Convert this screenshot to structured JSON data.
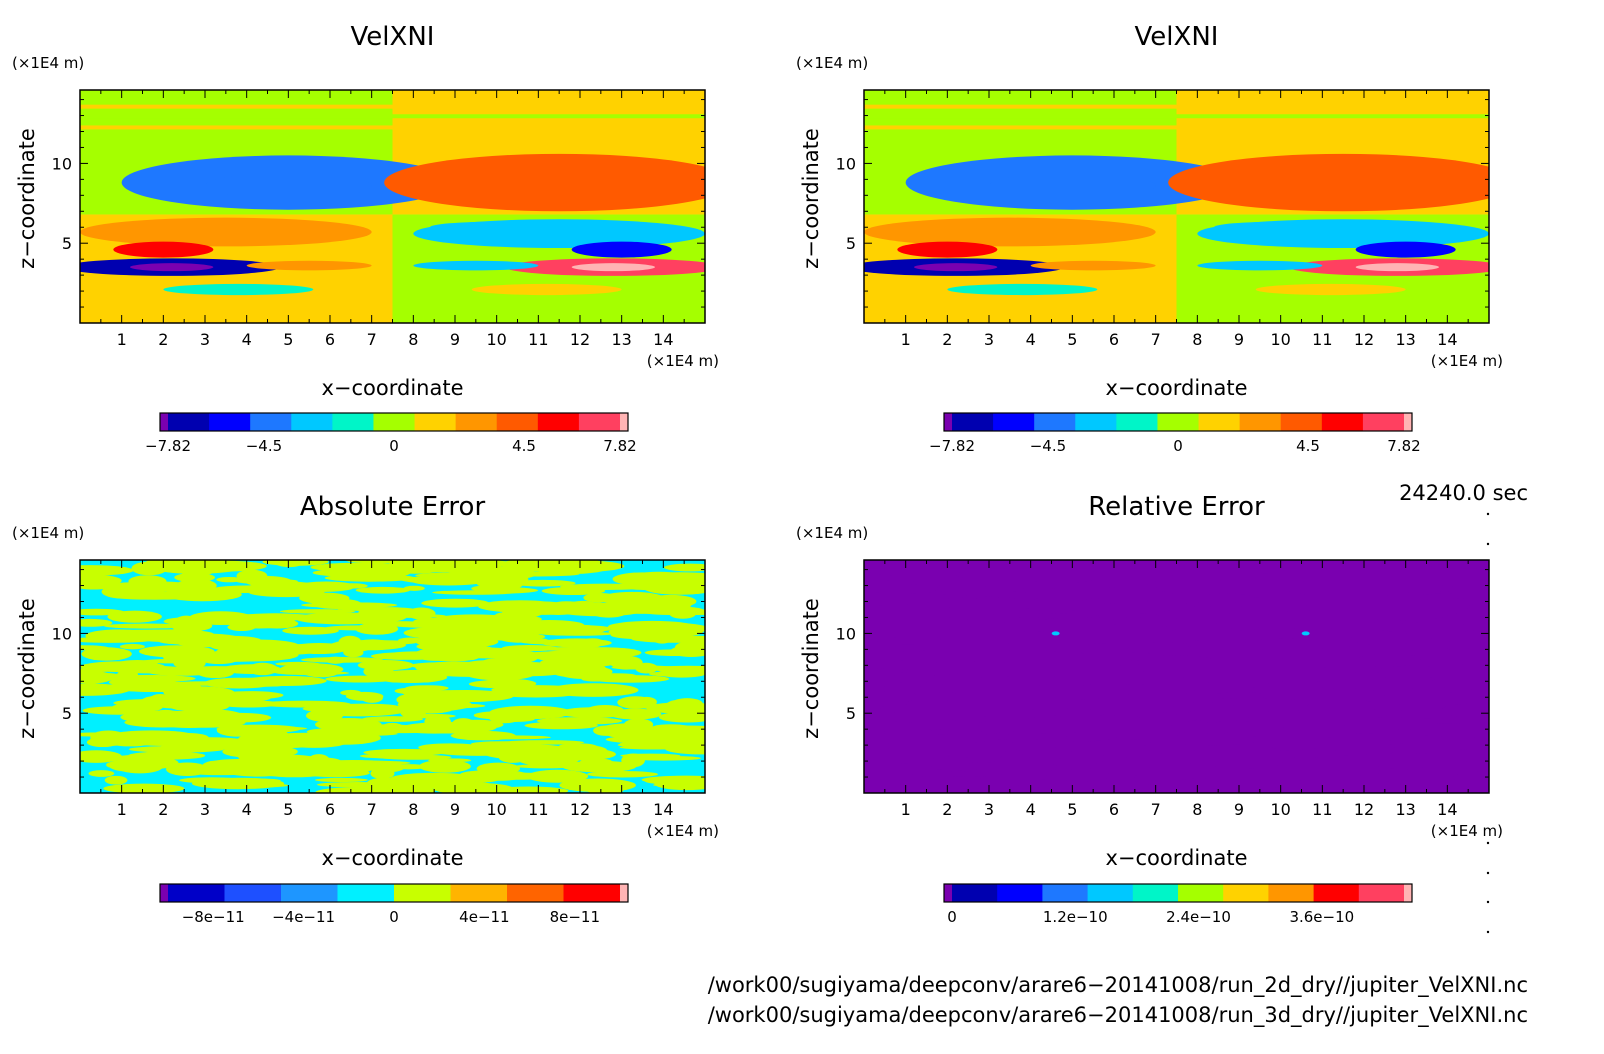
{
  "chart_data": [
    {
      "type": "heatmap",
      "title": "VelXNI",
      "xlabel": "x−coordinate",
      "ylabel": "z−coordinate",
      "x_unit": "(×1E4 m)",
      "y_unit": "(×1E4 m)",
      "x_ticks": [
        "1",
        "2",
        "3",
        "4",
        "5",
        "6",
        "7",
        "8",
        "9",
        "10",
        "11",
        "12",
        "13",
        "14"
      ],
      "y_ticks": [
        "5",
        "10"
      ],
      "xlim": [
        0,
        15
      ],
      "ylim": [
        0,
        14.6
      ],
      "colorbar": {
        "labels": [
          "−7.82",
          "−4.5",
          "0",
          "4.5",
          "7.82"
        ],
        "label_positions": [
          -7.82,
          -4.5,
          0,
          4.5,
          7.82
        ],
        "range": [
          -7.82,
          7.82
        ],
        "colors": [
          "#7a00b0",
          "#0000b0",
          "#0000ff",
          "#1e78ff",
          "#00c8ff",
          "#00f5c8",
          "#a5ff00",
          "#ffd200",
          "#ff9600",
          "#ff5a00",
          "#ff0000",
          "#ff4060",
          "#ffb4b4"
        ]
      },
      "features": [
        {
          "x": 5.0,
          "z": 9.0,
          "value": -3.5
        },
        {
          "x": 2.0,
          "z": 5.5,
          "value": 3.5
        },
        {
          "x": 2.0,
          "z": 3.5,
          "value": -7.5
        },
        {
          "x": 4.5,
          "z": 6.2,
          "value": 2.0
        },
        {
          "x": 11.5,
          "z": 9.0,
          "value": 3.5
        },
        {
          "x": 13.0,
          "z": 5.5,
          "value": -3.5
        },
        {
          "x": 13.0,
          "z": 3.5,
          "value": 7.5
        },
        {
          "x": 10.5,
          "z": 6.2,
          "value": -2.0
        }
      ]
    },
    {
      "type": "heatmap",
      "title": "VelXNI",
      "xlabel": "x−coordinate",
      "ylabel": "z−coordinate",
      "x_unit": "(×1E4 m)",
      "y_unit": "(×1E4 m)",
      "x_ticks": [
        "1",
        "2",
        "3",
        "4",
        "5",
        "6",
        "7",
        "8",
        "9",
        "10",
        "11",
        "12",
        "13",
        "14"
      ],
      "y_ticks": [
        "5",
        "10"
      ],
      "xlim": [
        0,
        15
      ],
      "ylim": [
        0,
        14.6
      ],
      "colorbar": {
        "labels": [
          "−7.82",
          "−4.5",
          "0",
          "4.5",
          "7.82"
        ],
        "label_positions": [
          -7.82,
          -4.5,
          0,
          4.5,
          7.82
        ],
        "range": [
          -7.82,
          7.82
        ],
        "colors": [
          "#7a00b0",
          "#0000b0",
          "#0000ff",
          "#1e78ff",
          "#00c8ff",
          "#00f5c8",
          "#a5ff00",
          "#ffd200",
          "#ff9600",
          "#ff5a00",
          "#ff0000",
          "#ff4060",
          "#ffb4b4"
        ]
      },
      "features": [
        {
          "x": 5.0,
          "z": 9.0,
          "value": -3.5
        },
        {
          "x": 2.0,
          "z": 5.5,
          "value": 3.5
        },
        {
          "x": 2.0,
          "z": 3.5,
          "value": -7.5
        },
        {
          "x": 4.5,
          "z": 6.2,
          "value": 2.0
        },
        {
          "x": 11.5,
          "z": 9.0,
          "value": 3.5
        },
        {
          "x": 13.0,
          "z": 5.5,
          "value": -3.5
        },
        {
          "x": 13.0,
          "z": 3.5,
          "value": 7.5
        },
        {
          "x": 10.5,
          "z": 6.2,
          "value": -2.0
        }
      ]
    },
    {
      "type": "heatmap",
      "title": "Absolute Error",
      "xlabel": "x−coordinate",
      "ylabel": "z−coordinate",
      "x_unit": "(×1E4 m)",
      "y_unit": "(×1E4 m)",
      "x_ticks": [
        "1",
        "2",
        "3",
        "4",
        "5",
        "6",
        "7",
        "8",
        "9",
        "10",
        "11",
        "12",
        "13",
        "14"
      ],
      "y_ticks": [
        "5",
        "10"
      ],
      "xlim": [
        0,
        15
      ],
      "ylim": [
        0,
        14.6
      ],
      "colorbar": {
        "labels": [
          "−8e−11",
          "−4e−11",
          "0",
          "4e−11",
          "8e−11"
        ],
        "label_positions": [
          -8e-11,
          -4e-11,
          0,
          4e-11,
          8e-11
        ],
        "range": [
          -1e-10,
          1e-10
        ],
        "colors": [
          "#7a00b0",
          "#0000c8",
          "#1e50ff",
          "#1e96ff",
          "#00f0ff",
          "#c8ff00",
          "#ffb400",
          "#ff6400",
          "#ff0000",
          "#ffb4b4"
        ]
      },
      "field_values": [
        -1e-11,
        1e-11
      ]
    },
    {
      "type": "heatmap",
      "title": "Relative Error",
      "xlabel": "x−coordinate",
      "ylabel": "z−coordinate",
      "x_unit": "(×1E4 m)",
      "y_unit": "(×1E4 m)",
      "x_ticks": [
        "1",
        "2",
        "3",
        "4",
        "5",
        "6",
        "7",
        "8",
        "9",
        "10",
        "11",
        "12",
        "13",
        "14"
      ],
      "y_ticks": [
        "5",
        "10"
      ],
      "xlim": [
        0,
        15
      ],
      "ylim": [
        0,
        14.6
      ],
      "colorbar": {
        "labels": [
          "0",
          "1.2e−10",
          "2.4e−10",
          "3.6e−10"
        ],
        "label_positions": [
          0,
          1.2e-10,
          2.4e-10,
          3.6e-10
        ],
        "range": [
          0,
          4.4e-10
        ],
        "colors": [
          "#7a00b0",
          "#0000b0",
          "#0000ff",
          "#1e78ff",
          "#00c8ff",
          "#00f5c8",
          "#a5ff00",
          "#ffd200",
          "#ff9600",
          "#ff0000",
          "#ff4060",
          "#ffb4b4"
        ]
      },
      "field_values": [
        0,
        1.5e-11
      ],
      "features": [
        {
          "x": 4.6,
          "z": 10.0,
          "value": 1.7e-10
        },
        {
          "x": 10.6,
          "z": 10.0,
          "value": 1.7e-10
        }
      ]
    }
  ],
  "annotations": {
    "time": "24240.0 sec",
    "file_1": "/work00/sugiyama/deepconv/arare6−20141008/run_2d_dry//jupiter_VelXNI.nc",
    "file_2": "/work00/sugiyama/deepconv/arare6−20141008/run_3d_dry//jupiter_VelXNI.nc"
  }
}
